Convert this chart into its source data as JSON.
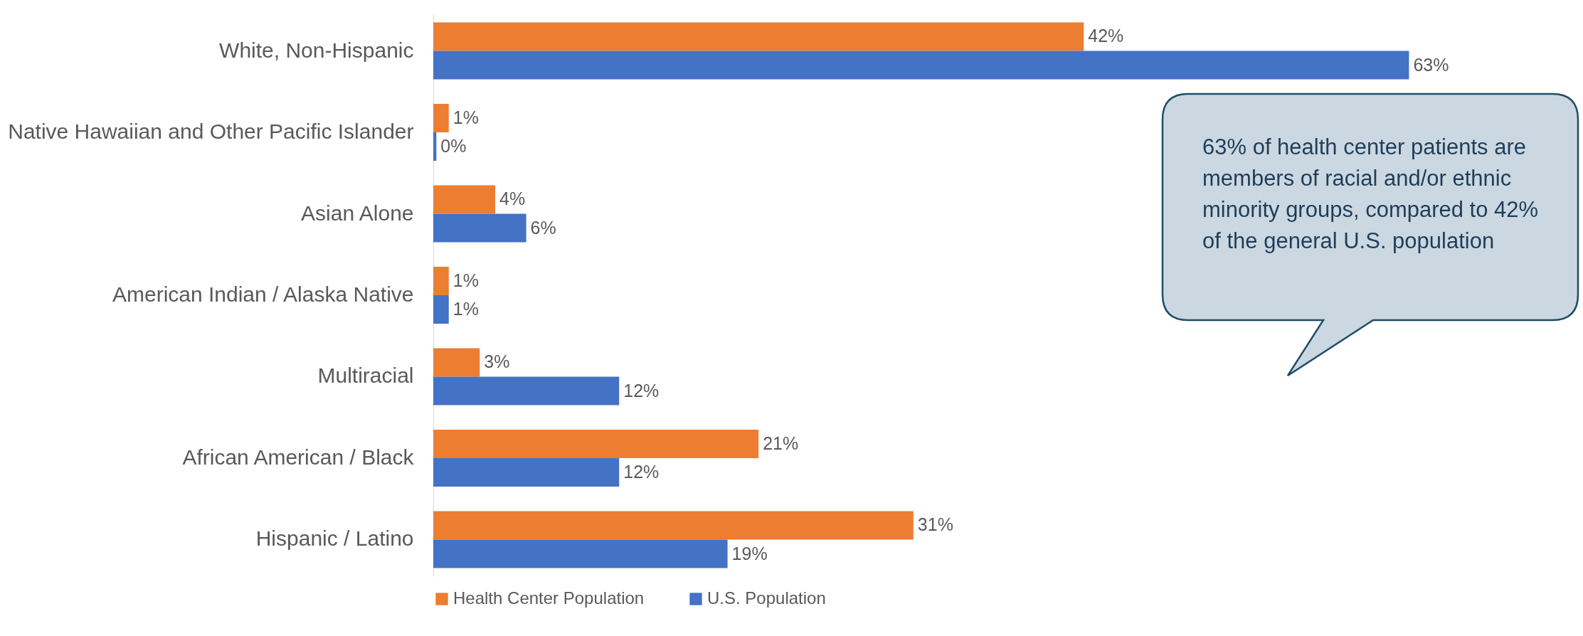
{
  "chart_data": {
    "type": "bar",
    "orientation": "horizontal",
    "categories": [
      "White, Non-Hispanic",
      "Native Hawaiian and Other Pacific Islander",
      "Asian Alone",
      "American Indian / Alaska Native",
      "Multiracial",
      "African American / Black",
      "Hispanic / Latino"
    ],
    "series": [
      {
        "name": "Health Center Population",
        "color": "#ed7d31",
        "values": [
          42,
          1,
          4,
          1,
          3,
          21,
          31
        ],
        "value_labels": [
          "42%",
          "1%",
          "4%",
          "1%",
          "3%",
          "21%",
          "31%"
        ]
      },
      {
        "name": "U.S. Population",
        "color": "#4472c4",
        "values": [
          63,
          0.2,
          6,
          1,
          12,
          12,
          19
        ],
        "value_labels": [
          "63%",
          "0%",
          "6%",
          "1%",
          "12%",
          "12%",
          "19%"
        ]
      }
    ],
    "legend": "bottom",
    "grid": false,
    "annotations": [
      "63% of health center patients are members of racial and/or ethnic minority groups, compared to 42% of the general U.S. population"
    ]
  }
}
